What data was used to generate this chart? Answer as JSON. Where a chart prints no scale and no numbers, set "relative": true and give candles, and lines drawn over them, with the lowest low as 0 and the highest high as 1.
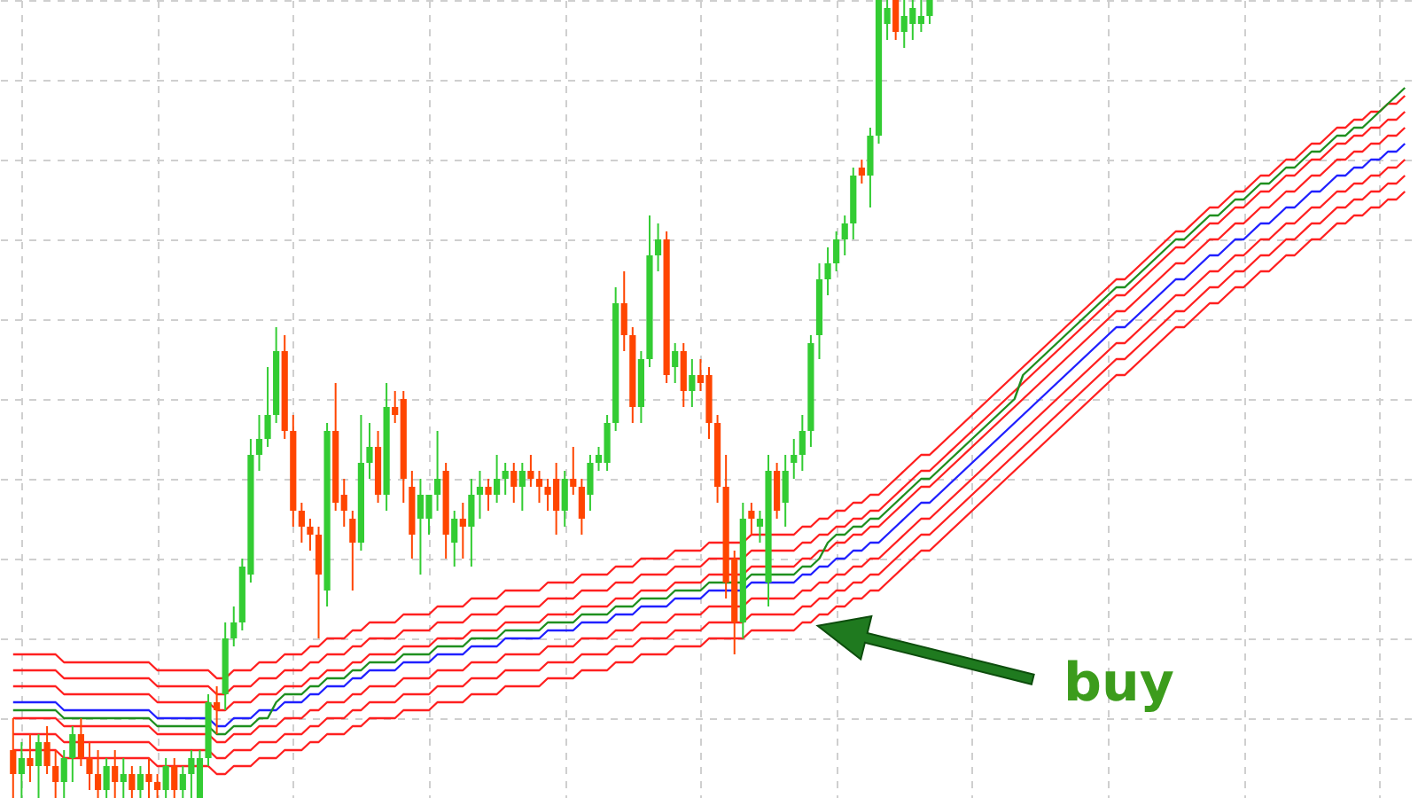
{
  "chart_data": {
    "type": "candlestick",
    "relative": true,
    "categories": [
      null,
      null,
      null,
      null,
      null,
      null,
      null,
      null,
      null,
      null,
      null,
      null,
      null,
      null,
      null,
      null,
      null,
      null,
      null,
      null,
      null,
      null,
      null,
      null,
      null,
      null,
      null,
      null,
      null,
      null,
      null,
      null,
      null,
      null,
      null,
      null,
      null,
      null,
      null,
      null,
      null,
      null,
      null,
      null,
      null,
      null,
      null,
      null,
      null,
      null,
      null,
      null,
      null,
      null,
      null,
      null,
      null,
      null,
      null,
      null,
      null,
      null,
      null,
      null,
      null,
      null,
      null,
      null,
      null,
      null,
      null,
      null,
      null,
      null,
      null,
      null,
      null,
      null,
      null,
      null,
      null,
      null,
      null,
      null,
      null,
      null,
      null,
      null,
      null,
      null,
      null,
      null,
      null,
      null,
      null,
      null,
      null,
      null,
      null,
      null,
      null,
      null,
      null,
      null,
      null,
      null,
      null,
      null,
      null,
      null,
      null,
      null,
      null,
      null,
      null,
      null,
      null,
      null,
      null,
      null,
      null,
      null,
      null,
      null,
      null,
      null,
      null,
      null,
      null,
      null,
      null,
      null,
      null,
      null,
      null,
      null,
      null,
      null,
      null,
      null,
      null,
      null,
      null,
      null,
      null,
      null,
      null,
      null,
      null,
      null,
      null,
      null,
      null,
      null,
      null,
      null,
      null,
      null,
      null,
      null,
      null,
      null,
      null,
      null,
      null
    ],
    "ohlc": [
      [
        0.06,
        0.1,
        0.0,
        0.03
      ],
      [
        0.03,
        0.07,
        0.0,
        0.05
      ],
      [
        0.05,
        0.08,
        0.02,
        0.04
      ],
      [
        0.04,
        0.08,
        0.0,
        0.07
      ],
      [
        0.07,
        0.09,
        0.03,
        0.04
      ],
      [
        0.04,
        0.06,
        0.0,
        0.02
      ],
      [
        0.02,
        0.06,
        0.0,
        0.05
      ],
      [
        0.05,
        0.09,
        0.02,
        0.08
      ],
      [
        0.08,
        0.1,
        0.04,
        0.05
      ],
      [
        0.05,
        0.07,
        0.01,
        0.03
      ],
      [
        0.03,
        0.06,
        0.0,
        0.01
      ],
      [
        0.01,
        0.05,
        0.0,
        0.04
      ],
      [
        0.04,
        0.06,
        0.0,
        0.02
      ],
      [
        0.02,
        0.05,
        0.0,
        0.03
      ],
      [
        0.03,
        0.04,
        0.0,
        0.01
      ],
      [
        0.01,
        0.04,
        0.0,
        0.03
      ],
      [
        0.03,
        0.05,
        0.0,
        0.02
      ],
      [
        0.02,
        0.03,
        0.0,
        0.01
      ],
      [
        0.01,
        0.05,
        0.0,
        0.04
      ],
      [
        0.04,
        0.05,
        0.0,
        0.01
      ],
      [
        0.01,
        0.04,
        0.0,
        0.03
      ],
      [
        0.03,
        0.06,
        0.0,
        0.05
      ],
      [
        0.0,
        0.06,
        0.0,
        0.05
      ],
      [
        0.05,
        0.13,
        0.04,
        0.12
      ],
      [
        0.12,
        0.14,
        0.08,
        0.11
      ],
      [
        0.13,
        0.22,
        0.11,
        0.2
      ],
      [
        0.2,
        0.24,
        0.19,
        0.22
      ],
      [
        0.22,
        0.3,
        0.21,
        0.29
      ],
      [
        0.28,
        0.45,
        0.27,
        0.43
      ],
      [
        0.43,
        0.48,
        0.41,
        0.45
      ],
      [
        0.45,
        0.54,
        0.44,
        0.48
      ],
      [
        0.48,
        0.59,
        0.47,
        0.56
      ],
      [
        0.56,
        0.58,
        0.45,
        0.46
      ],
      [
        0.46,
        0.48,
        0.34,
        0.36
      ],
      [
        0.36,
        0.37,
        0.32,
        0.34
      ],
      [
        0.34,
        0.35,
        0.31,
        0.33
      ],
      [
        0.33,
        0.34,
        0.2,
        0.28
      ],
      [
        0.26,
        0.47,
        0.24,
        0.46
      ],
      [
        0.46,
        0.52,
        0.36,
        0.37
      ],
      [
        0.38,
        0.4,
        0.34,
        0.36
      ],
      [
        0.35,
        0.36,
        0.26,
        0.32
      ],
      [
        0.32,
        0.48,
        0.31,
        0.42
      ],
      [
        0.42,
        0.47,
        0.4,
        0.44
      ],
      [
        0.44,
        0.46,
        0.37,
        0.38
      ],
      [
        0.38,
        0.52,
        0.36,
        0.49
      ],
      [
        0.49,
        0.51,
        0.47,
        0.48
      ],
      [
        0.5,
        0.51,
        0.37,
        0.4
      ],
      [
        0.39,
        0.41,
        0.3,
        0.33
      ],
      [
        0.35,
        0.4,
        0.28,
        0.38
      ],
      [
        0.35,
        0.38,
        0.33,
        0.38
      ],
      [
        0.38,
        0.46,
        0.36,
        0.4
      ],
      [
        0.41,
        0.42,
        0.3,
        0.33
      ],
      [
        0.32,
        0.36,
        0.29,
        0.35
      ],
      [
        0.35,
        0.37,
        0.3,
        0.34
      ],
      [
        0.34,
        0.4,
        0.29,
        0.38
      ],
      [
        0.38,
        0.41,
        0.35,
        0.39
      ],
      [
        0.39,
        0.4,
        0.36,
        0.38
      ],
      [
        0.38,
        0.43,
        0.37,
        0.4
      ],
      [
        0.4,
        0.42,
        0.38,
        0.41
      ],
      [
        0.41,
        0.42,
        0.37,
        0.39
      ],
      [
        0.39,
        0.42,
        0.36,
        0.41
      ],
      [
        0.41,
        0.43,
        0.39,
        0.4
      ],
      [
        0.4,
        0.41,
        0.37,
        0.39
      ],
      [
        0.39,
        0.4,
        0.36,
        0.38
      ],
      [
        0.4,
        0.42,
        0.33,
        0.36
      ],
      [
        0.36,
        0.41,
        0.34,
        0.4
      ],
      [
        0.4,
        0.44,
        0.38,
        0.39
      ],
      [
        0.39,
        0.4,
        0.33,
        0.35
      ],
      [
        0.38,
        0.43,
        0.36,
        0.42
      ],
      [
        0.42,
        0.44,
        0.41,
        0.43
      ],
      [
        0.42,
        0.48,
        0.41,
        0.47
      ],
      [
        0.47,
        0.64,
        0.46,
        0.62
      ],
      [
        0.62,
        0.66,
        0.56,
        0.58
      ],
      [
        0.58,
        0.59,
        0.47,
        0.49
      ],
      [
        0.49,
        0.56,
        0.47,
        0.55
      ],
      [
        0.55,
        0.73,
        0.54,
        0.68
      ],
      [
        0.68,
        0.72,
        0.66,
        0.7
      ],
      [
        0.7,
        0.71,
        0.52,
        0.53
      ],
      [
        0.54,
        0.57,
        0.52,
        0.56
      ],
      [
        0.56,
        0.57,
        0.49,
        0.51
      ],
      [
        0.51,
        0.55,
        0.49,
        0.53
      ],
      [
        0.53,
        0.55,
        0.51,
        0.52
      ],
      [
        0.53,
        0.54,
        0.45,
        0.47
      ],
      [
        0.47,
        0.48,
        0.37,
        0.39
      ],
      [
        0.39,
        0.43,
        0.25,
        0.27
      ],
      [
        0.3,
        0.31,
        0.18,
        0.22
      ],
      [
        0.22,
        0.37,
        0.2,
        0.35
      ],
      [
        0.36,
        0.37,
        0.33,
        0.35
      ],
      [
        0.34,
        0.36,
        0.32,
        0.35
      ],
      [
        0.27,
        0.43,
        0.24,
        0.41
      ],
      [
        0.41,
        0.42,
        0.35,
        0.36
      ],
      [
        0.37,
        0.43,
        0.34,
        0.41
      ],
      [
        0.42,
        0.45,
        0.4,
        0.43
      ],
      [
        0.43,
        0.48,
        0.41,
        0.46
      ],
      [
        0.46,
        0.58,
        0.44,
        0.57
      ],
      [
        0.58,
        0.67,
        0.55,
        0.65
      ],
      [
        0.65,
        0.69,
        0.63,
        0.67
      ],
      [
        0.67,
        0.71,
        0.66,
        0.7
      ],
      [
        0.7,
        0.73,
        0.68,
        0.72
      ],
      [
        0.72,
        0.79,
        0.7,
        0.78
      ],
      [
        0.79,
        0.8,
        0.77,
        0.78
      ],
      [
        0.78,
        0.84,
        0.74,
        0.83
      ],
      [
        0.83,
        1.0,
        0.82,
        1.0
      ],
      [
        0.97,
        1.0,
        0.95,
        0.99
      ],
      [
        1.0,
        1.0,
        0.95,
        0.96
      ],
      [
        0.96,
        1.0,
        0.94,
        0.98
      ],
      [
        0.97,
        1.0,
        0.95,
        0.99
      ],
      [
        0.97,
        1.0,
        0.96,
        0.98
      ],
      [
        0.98,
        1.0,
        0.97,
        1.0
      ],
      null,
      null,
      null,
      null,
      null,
      null,
      null,
      null,
      null,
      null,
      null,
      null,
      null,
      null,
      null,
      null,
      null,
      null,
      null,
      null,
      null,
      null,
      null,
      null,
      null,
      null,
      null,
      null,
      null,
      null,
      null,
      null,
      null,
      null,
      null,
      null,
      null,
      null,
      null,
      null,
      null,
      null,
      null,
      null,
      null,
      null,
      null,
      null,
      null,
      null,
      null,
      null,
      null,
      null,
      null,
      null
    ],
    "colors": [
      "#ff4500",
      "#33cc33",
      "#ff4500",
      "#33cc33",
      "#ff4500",
      "#ff4500",
      "#33cc33",
      "#33cc33",
      "#ff4500",
      "#ff4500",
      "#ff4500",
      "#33cc33",
      "#ff4500",
      "#33cc33",
      "#ff4500",
      "#33cc33",
      "#ff4500",
      "#ff4500",
      "#33cc33",
      "#ff4500",
      "#33cc33",
      "#33cc33",
      "#33cc33",
      "#33cc33",
      "#ff4500",
      "#33cc33",
      "#33cc33",
      "#33cc33",
      "#33cc33",
      "#33cc33",
      "#33cc33",
      "#33cc33",
      "#ff4500",
      "#ff4500",
      "#ff4500",
      "#ff4500",
      "#ff4500",
      "#33cc33",
      "#ff4500",
      "#ff4500",
      "#ff4500",
      "#33cc33",
      "#33cc33",
      "#ff4500",
      "#33cc33",
      "#ff4500",
      "#ff4500",
      "#ff4500",
      "#33cc33",
      "#33cc33",
      "#33cc33",
      "#ff4500",
      "#33cc33",
      "#ff4500",
      "#33cc33",
      "#33cc33",
      "#ff4500",
      "#33cc33",
      "#33cc33",
      "#ff4500",
      "#33cc33",
      "#ff4500",
      "#ff4500",
      "#ff4500",
      "#ff4500",
      "#33cc33",
      "#ff4500",
      "#ff4500",
      "#33cc33",
      "#33cc33",
      "#33cc33",
      "#33cc33",
      "#ff4500",
      "#ff4500",
      "#33cc33",
      "#33cc33",
      "#33cc33",
      "#ff4500",
      "#33cc33",
      "#ff4500",
      "#33cc33",
      "#ff4500",
      "#ff4500",
      "#ff4500",
      "#ff4500",
      "#ff4500",
      "#33cc33",
      "#ff4500",
      "#33cc33",
      "#33cc33",
      "#ff4500",
      "#33cc33",
      "#33cc33",
      "#33cc33",
      "#33cc33",
      "#33cc33",
      "#33cc33",
      "#33cc33",
      "#33cc33",
      "#33cc33",
      "#ff4500",
      "#33cc33",
      "#33cc33",
      "#33cc33",
      "#ff4500",
      "#33cc33",
      "#33cc33",
      "#33cc33",
      "#33cc33",
      null,
      null,
      null,
      null,
      null,
      null,
      null,
      null,
      null,
      null,
      null,
      null,
      null,
      null,
      null,
      null,
      null,
      null,
      null,
      null,
      null,
      null,
      null,
      null,
      null,
      null,
      null,
      null,
      null,
      null,
      null,
      null,
      null,
      null,
      null,
      null,
      null,
      null,
      null,
      null,
      null,
      null,
      null,
      null,
      null,
      null,
      null,
      null,
      null,
      null,
      null,
      null,
      null,
      null,
      null,
      null
    ],
    "series": [
      {
        "type": "line",
        "color": "#ff2020",
        "values": [
          0.18,
          0.18,
          0.18,
          0.18,
          0.18,
          0.18,
          0.17,
          0.17,
          0.17,
          0.17,
          0.17,
          0.17,
          0.17,
          0.17,
          0.17,
          0.17,
          0.17,
          0.16,
          0.16,
          0.16,
          0.16,
          0.16,
          0.16,
          0.16,
          0.15,
          0.15,
          0.16,
          0.16,
          0.16,
          0.17,
          0.17,
          0.17,
          0.18,
          0.18,
          0.18,
          0.19,
          0.19,
          0.2,
          0.2,
          0.2,
          0.21,
          0.21,
          0.22,
          0.22,
          0.22,
          0.22,
          0.23,
          0.23,
          0.23,
          0.23,
          0.24,
          0.24,
          0.24,
          0.24,
          0.25,
          0.25,
          0.25,
          0.25,
          0.26,
          0.26,
          0.26,
          0.26,
          0.26,
          0.27,
          0.27,
          0.27,
          0.27,
          0.28,
          0.28,
          0.28,
          0.28,
          0.29,
          0.29,
          0.29,
          0.3,
          0.3,
          0.3,
          0.3,
          0.31,
          0.31,
          0.31,
          0.31,
          0.32,
          0.32,
          0.32,
          0.32,
          0.32,
          0.33,
          0.33,
          0.33,
          0.33,
          0.33,
          0.33,
          0.34,
          0.34,
          0.35,
          0.35,
          0.36,
          0.36,
          0.37,
          0.37,
          0.38,
          0.38,
          0.39,
          0.4,
          0.41,
          0.42,
          0.43,
          0.43,
          0.44,
          0.45,
          0.46,
          0.47,
          0.48,
          0.49,
          0.5,
          0.51,
          0.52,
          0.53,
          0.54,
          0.55,
          0.56,
          0.57,
          0.58,
          0.59,
          0.6,
          0.61,
          0.62,
          0.63,
          0.64,
          0.65,
          0.65,
          0.66,
          0.67,
          0.68,
          0.69,
          0.7,
          0.71,
          0.71,
          0.72,
          0.73,
          0.74,
          0.74,
          0.75,
          0.76,
          0.76,
          0.77,
          0.78,
          0.78,
          0.79,
          0.8,
          0.8,
          0.81,
          0.82,
          0.82,
          0.83,
          0.84,
          0.84,
          0.85,
          0.85,
          0.86,
          0.86,
          0.87,
          0.87,
          0.88
        ]
      },
      {
        "type": "line",
        "color": "#ff2020",
        "values": [
          0.16,
          0.16,
          0.16,
          0.16,
          0.16,
          0.16,
          0.15,
          0.15,
          0.15,
          0.15,
          0.15,
          0.15,
          0.15,
          0.15,
          0.15,
          0.15,
          0.15,
          0.14,
          0.14,
          0.14,
          0.14,
          0.14,
          0.14,
          0.14,
          0.13,
          0.13,
          0.14,
          0.14,
          0.14,
          0.15,
          0.15,
          0.15,
          0.16,
          0.16,
          0.16,
          0.17,
          0.17,
          0.18,
          0.18,
          0.18,
          0.19,
          0.19,
          0.2,
          0.2,
          0.2,
          0.2,
          0.21,
          0.21,
          0.21,
          0.21,
          0.22,
          0.22,
          0.22,
          0.22,
          0.23,
          0.23,
          0.23,
          0.23,
          0.24,
          0.24,
          0.24,
          0.24,
          0.24,
          0.25,
          0.25,
          0.25,
          0.25,
          0.26,
          0.26,
          0.26,
          0.26,
          0.27,
          0.27,
          0.27,
          0.28,
          0.28,
          0.28,
          0.28,
          0.29,
          0.29,
          0.29,
          0.29,
          0.3,
          0.3,
          0.3,
          0.3,
          0.3,
          0.31,
          0.31,
          0.31,
          0.31,
          0.31,
          0.31,
          0.32,
          0.32,
          0.33,
          0.33,
          0.34,
          0.34,
          0.35,
          0.35,
          0.36,
          0.36,
          0.37,
          0.38,
          0.39,
          0.4,
          0.41,
          0.41,
          0.42,
          0.43,
          0.44,
          0.45,
          0.46,
          0.47,
          0.48,
          0.49,
          0.5,
          0.51,
          0.52,
          0.53,
          0.54,
          0.55,
          0.56,
          0.57,
          0.58,
          0.59,
          0.6,
          0.61,
          0.62,
          0.63,
          0.63,
          0.64,
          0.65,
          0.66,
          0.67,
          0.68,
          0.69,
          0.69,
          0.7,
          0.71,
          0.72,
          0.72,
          0.73,
          0.74,
          0.74,
          0.75,
          0.76,
          0.76,
          0.77,
          0.78,
          0.78,
          0.79,
          0.8,
          0.8,
          0.81,
          0.82,
          0.82,
          0.83,
          0.83,
          0.84,
          0.84,
          0.85,
          0.85,
          0.86
        ]
      },
      {
        "type": "line",
        "color": "#ff2020",
        "values": [
          0.14,
          0.14,
          0.14,
          0.14,
          0.14,
          0.14,
          0.13,
          0.13,
          0.13,
          0.13,
          0.13,
          0.13,
          0.13,
          0.13,
          0.13,
          0.13,
          0.13,
          0.12,
          0.12,
          0.12,
          0.12,
          0.12,
          0.12,
          0.12,
          0.11,
          0.11,
          0.12,
          0.12,
          0.12,
          0.13,
          0.13,
          0.13,
          0.14,
          0.14,
          0.14,
          0.15,
          0.15,
          0.16,
          0.16,
          0.16,
          0.17,
          0.17,
          0.18,
          0.18,
          0.18,
          0.18,
          0.19,
          0.19,
          0.19,
          0.19,
          0.2,
          0.2,
          0.2,
          0.2,
          0.21,
          0.21,
          0.21,
          0.21,
          0.22,
          0.22,
          0.22,
          0.22,
          0.22,
          0.23,
          0.23,
          0.23,
          0.23,
          0.24,
          0.24,
          0.24,
          0.24,
          0.25,
          0.25,
          0.25,
          0.26,
          0.26,
          0.26,
          0.26,
          0.27,
          0.27,
          0.27,
          0.27,
          0.28,
          0.28,
          0.28,
          0.28,
          0.28,
          0.29,
          0.29,
          0.29,
          0.29,
          0.29,
          0.29,
          0.3,
          0.3,
          0.31,
          0.31,
          0.32,
          0.32,
          0.33,
          0.33,
          0.34,
          0.34,
          0.35,
          0.36,
          0.37,
          0.38,
          0.39,
          0.39,
          0.4,
          0.41,
          0.42,
          0.43,
          0.44,
          0.45,
          0.46,
          0.47,
          0.48,
          0.49,
          0.5,
          0.51,
          0.52,
          0.53,
          0.54,
          0.55,
          0.56,
          0.57,
          0.58,
          0.59,
          0.6,
          0.61,
          0.61,
          0.62,
          0.63,
          0.64,
          0.65,
          0.66,
          0.67,
          0.67,
          0.68,
          0.69,
          0.7,
          0.7,
          0.71,
          0.72,
          0.72,
          0.73,
          0.74,
          0.74,
          0.75,
          0.76,
          0.76,
          0.77,
          0.78,
          0.78,
          0.79,
          0.8,
          0.8,
          0.81,
          0.81,
          0.82,
          0.82,
          0.83,
          0.83,
          0.84
        ]
      },
      {
        "type": "line",
        "color": "#ff2020",
        "values": [
          0.1,
          0.1,
          0.1,
          0.1,
          0.1,
          0.1,
          0.09,
          0.09,
          0.09,
          0.09,
          0.09,
          0.09,
          0.09,
          0.09,
          0.09,
          0.09,
          0.09,
          0.08,
          0.08,
          0.08,
          0.08,
          0.08,
          0.08,
          0.08,
          0.07,
          0.07,
          0.08,
          0.08,
          0.08,
          0.09,
          0.09,
          0.09,
          0.1,
          0.1,
          0.1,
          0.11,
          0.11,
          0.12,
          0.12,
          0.12,
          0.13,
          0.13,
          0.14,
          0.14,
          0.14,
          0.14,
          0.15,
          0.15,
          0.15,
          0.15,
          0.16,
          0.16,
          0.16,
          0.16,
          0.17,
          0.17,
          0.17,
          0.17,
          0.18,
          0.18,
          0.18,
          0.18,
          0.18,
          0.19,
          0.19,
          0.19,
          0.19,
          0.2,
          0.2,
          0.2,
          0.2,
          0.21,
          0.21,
          0.21,
          0.22,
          0.22,
          0.22,
          0.22,
          0.23,
          0.23,
          0.23,
          0.23,
          0.24,
          0.24,
          0.24,
          0.24,
          0.24,
          0.25,
          0.25,
          0.25,
          0.25,
          0.25,
          0.25,
          0.26,
          0.26,
          0.27,
          0.27,
          0.28,
          0.28,
          0.29,
          0.29,
          0.3,
          0.3,
          0.31,
          0.32,
          0.33,
          0.34,
          0.35,
          0.35,
          0.36,
          0.37,
          0.38,
          0.39,
          0.4,
          0.41,
          0.42,
          0.43,
          0.44,
          0.45,
          0.46,
          0.47,
          0.48,
          0.49,
          0.5,
          0.51,
          0.52,
          0.53,
          0.54,
          0.55,
          0.56,
          0.57,
          0.57,
          0.58,
          0.59,
          0.6,
          0.61,
          0.62,
          0.63,
          0.63,
          0.64,
          0.65,
          0.66,
          0.66,
          0.67,
          0.68,
          0.68,
          0.69,
          0.7,
          0.7,
          0.71,
          0.72,
          0.72,
          0.73,
          0.74,
          0.74,
          0.75,
          0.76,
          0.76,
          0.77,
          0.77,
          0.78,
          0.78,
          0.79,
          0.79,
          0.8
        ]
      },
      {
        "type": "line",
        "color": "#ff2020",
        "values": [
          0.08,
          0.08,
          0.08,
          0.08,
          0.08,
          0.08,
          0.07,
          0.07,
          0.07,
          0.07,
          0.07,
          0.07,
          0.07,
          0.07,
          0.07,
          0.07,
          0.07,
          0.06,
          0.06,
          0.06,
          0.06,
          0.06,
          0.06,
          0.06,
          0.05,
          0.05,
          0.06,
          0.06,
          0.06,
          0.07,
          0.07,
          0.07,
          0.08,
          0.08,
          0.08,
          0.09,
          0.09,
          0.1,
          0.1,
          0.1,
          0.11,
          0.11,
          0.12,
          0.12,
          0.12,
          0.12,
          0.13,
          0.13,
          0.13,
          0.13,
          0.14,
          0.14,
          0.14,
          0.14,
          0.15,
          0.15,
          0.15,
          0.15,
          0.16,
          0.16,
          0.16,
          0.16,
          0.16,
          0.17,
          0.17,
          0.17,
          0.17,
          0.18,
          0.18,
          0.18,
          0.18,
          0.19,
          0.19,
          0.19,
          0.2,
          0.2,
          0.2,
          0.2,
          0.21,
          0.21,
          0.21,
          0.21,
          0.22,
          0.22,
          0.22,
          0.22,
          0.22,
          0.23,
          0.23,
          0.23,
          0.23,
          0.23,
          0.23,
          0.24,
          0.24,
          0.25,
          0.25,
          0.26,
          0.26,
          0.27,
          0.27,
          0.28,
          0.28,
          0.29,
          0.3,
          0.31,
          0.32,
          0.33,
          0.33,
          0.34,
          0.35,
          0.36,
          0.37,
          0.38,
          0.39,
          0.4,
          0.41,
          0.42,
          0.43,
          0.44,
          0.45,
          0.46,
          0.47,
          0.48,
          0.49,
          0.5,
          0.51,
          0.52,
          0.53,
          0.54,
          0.55,
          0.55,
          0.56,
          0.57,
          0.58,
          0.59,
          0.6,
          0.61,
          0.61,
          0.62,
          0.63,
          0.64,
          0.64,
          0.65,
          0.66,
          0.66,
          0.67,
          0.68,
          0.68,
          0.69,
          0.7,
          0.7,
          0.71,
          0.72,
          0.72,
          0.73,
          0.74,
          0.74,
          0.75,
          0.75,
          0.76,
          0.76,
          0.77,
          0.77,
          0.78
        ]
      },
      {
        "type": "line",
        "color": "#ff2020",
        "values": [
          0.06,
          0.06,
          0.06,
          0.06,
          0.06,
          0.06,
          0.05,
          0.05,
          0.05,
          0.05,
          0.05,
          0.05,
          0.05,
          0.05,
          0.05,
          0.05,
          0.05,
          0.04,
          0.04,
          0.04,
          0.04,
          0.04,
          0.04,
          0.04,
          0.03,
          0.03,
          0.04,
          0.04,
          0.04,
          0.05,
          0.05,
          0.05,
          0.06,
          0.06,
          0.06,
          0.07,
          0.07,
          0.08,
          0.08,
          0.08,
          0.09,
          0.09,
          0.1,
          0.1,
          0.1,
          0.1,
          0.11,
          0.11,
          0.11,
          0.11,
          0.12,
          0.12,
          0.12,
          0.12,
          0.13,
          0.13,
          0.13,
          0.13,
          0.14,
          0.14,
          0.14,
          0.14,
          0.14,
          0.15,
          0.15,
          0.15,
          0.15,
          0.16,
          0.16,
          0.16,
          0.16,
          0.17,
          0.17,
          0.17,
          0.18,
          0.18,
          0.18,
          0.18,
          0.19,
          0.19,
          0.19,
          0.19,
          0.2,
          0.2,
          0.2,
          0.2,
          0.2,
          0.21,
          0.21,
          0.21,
          0.21,
          0.21,
          0.21,
          0.22,
          0.22,
          0.23,
          0.23,
          0.24,
          0.24,
          0.25,
          0.25,
          0.26,
          0.26,
          0.27,
          0.28,
          0.29,
          0.3,
          0.31,
          0.31,
          0.32,
          0.33,
          0.34,
          0.35,
          0.36,
          0.37,
          0.38,
          0.39,
          0.4,
          0.41,
          0.42,
          0.43,
          0.44,
          0.45,
          0.46,
          0.47,
          0.48,
          0.49,
          0.5,
          0.51,
          0.52,
          0.53,
          0.53,
          0.54,
          0.55,
          0.56,
          0.57,
          0.58,
          0.59,
          0.59,
          0.6,
          0.61,
          0.62,
          0.62,
          0.63,
          0.64,
          0.64,
          0.65,
          0.66,
          0.66,
          0.67,
          0.68,
          0.68,
          0.69,
          0.7,
          0.7,
          0.71,
          0.72,
          0.72,
          0.73,
          0.73,
          0.74,
          0.74,
          0.75,
          0.75,
          0.76
        ]
      },
      {
        "type": "line",
        "color": "#2020ff",
        "values": [
          0.12,
          0.12,
          0.12,
          0.12,
          0.12,
          0.12,
          0.11,
          0.11,
          0.11,
          0.11,
          0.11,
          0.11,
          0.11,
          0.11,
          0.11,
          0.11,
          0.11,
          0.1,
          0.1,
          0.1,
          0.1,
          0.1,
          0.1,
          0.1,
          0.09,
          0.09,
          0.1,
          0.1,
          0.1,
          0.11,
          0.11,
          0.11,
          0.12,
          0.12,
          0.12,
          0.13,
          0.13,
          0.14,
          0.14,
          0.14,
          0.15,
          0.15,
          0.16,
          0.16,
          0.16,
          0.16,
          0.17,
          0.17,
          0.17,
          0.17,
          0.18,
          0.18,
          0.18,
          0.18,
          0.19,
          0.19,
          0.19,
          0.19,
          0.2,
          0.2,
          0.2,
          0.2,
          0.2,
          0.21,
          0.21,
          0.21,
          0.21,
          0.22,
          0.22,
          0.22,
          0.22,
          0.23,
          0.23,
          0.23,
          0.24,
          0.24,
          0.24,
          0.24,
          0.25,
          0.25,
          0.25,
          0.25,
          0.26,
          0.26,
          0.26,
          0.26,
          0.26,
          0.27,
          0.27,
          0.27,
          0.27,
          0.27,
          0.27,
          0.28,
          0.28,
          0.29,
          0.29,
          0.3,
          0.3,
          0.31,
          0.31,
          0.32,
          0.32,
          0.33,
          0.34,
          0.35,
          0.36,
          0.37,
          0.37,
          0.38,
          0.39,
          0.4,
          0.41,
          0.42,
          0.43,
          0.44,
          0.45,
          0.46,
          0.47,
          0.48,
          0.49,
          0.5,
          0.51,
          0.52,
          0.53,
          0.54,
          0.55,
          0.56,
          0.57,
          0.58,
          0.59,
          0.59,
          0.6,
          0.61,
          0.62,
          0.63,
          0.64,
          0.65,
          0.65,
          0.66,
          0.67,
          0.68,
          0.68,
          0.69,
          0.7,
          0.7,
          0.71,
          0.72,
          0.72,
          0.73,
          0.74,
          0.74,
          0.75,
          0.76,
          0.76,
          0.77,
          0.78,
          0.78,
          0.79,
          0.79,
          0.8,
          0.8,
          0.81,
          0.81,
          0.82
        ]
      },
      {
        "type": "line",
        "color": "#1f8f1f",
        "values": [
          0.11,
          0.11,
          0.11,
          0.11,
          0.11,
          0.11,
          0.1,
          0.1,
          0.1,
          0.1,
          0.1,
          0.1,
          0.1,
          0.1,
          0.1,
          0.1,
          0.1,
          0.09,
          0.09,
          0.09,
          0.09,
          0.09,
          0.09,
          0.09,
          0.08,
          0.08,
          0.09,
          0.09,
          0.09,
          0.1,
          0.1,
          0.12,
          0.13,
          0.13,
          0.13,
          0.14,
          0.14,
          0.15,
          0.15,
          0.15,
          0.16,
          0.16,
          0.17,
          0.17,
          0.17,
          0.17,
          0.18,
          0.18,
          0.18,
          0.18,
          0.19,
          0.19,
          0.19,
          0.19,
          0.2,
          0.2,
          0.2,
          0.2,
          0.21,
          0.21,
          0.21,
          0.21,
          0.21,
          0.22,
          0.22,
          0.22,
          0.22,
          0.23,
          0.23,
          0.23,
          0.23,
          0.24,
          0.24,
          0.24,
          0.25,
          0.25,
          0.25,
          0.25,
          0.26,
          0.26,
          0.26,
          0.26,
          0.27,
          0.27,
          0.27,
          0.27,
          0.27,
          0.28,
          0.28,
          0.28,
          0.28,
          0.28,
          0.28,
          0.29,
          0.29,
          0.3,
          0.32,
          0.33,
          0.33,
          0.34,
          0.34,
          0.35,
          0.35,
          0.36,
          0.37,
          0.38,
          0.39,
          0.4,
          0.4,
          0.41,
          0.42,
          0.43,
          0.44,
          0.45,
          0.46,
          0.47,
          0.48,
          0.49,
          0.5,
          0.53,
          0.54,
          0.55,
          0.56,
          0.57,
          0.58,
          0.59,
          0.6,
          0.61,
          0.62,
          0.63,
          0.64,
          0.64,
          0.65,
          0.66,
          0.67,
          0.68,
          0.69,
          0.7,
          0.7,
          0.71,
          0.72,
          0.73,
          0.73,
          0.74,
          0.75,
          0.75,
          0.76,
          0.77,
          0.77,
          0.78,
          0.79,
          0.79,
          0.8,
          0.81,
          0.81,
          0.82,
          0.83,
          0.83,
          0.84,
          0.84,
          0.85,
          0.86,
          0.87,
          0.88,
          0.89
        ]
      }
    ],
    "grid": true,
    "annotations": [
      "buy"
    ]
  }
}
